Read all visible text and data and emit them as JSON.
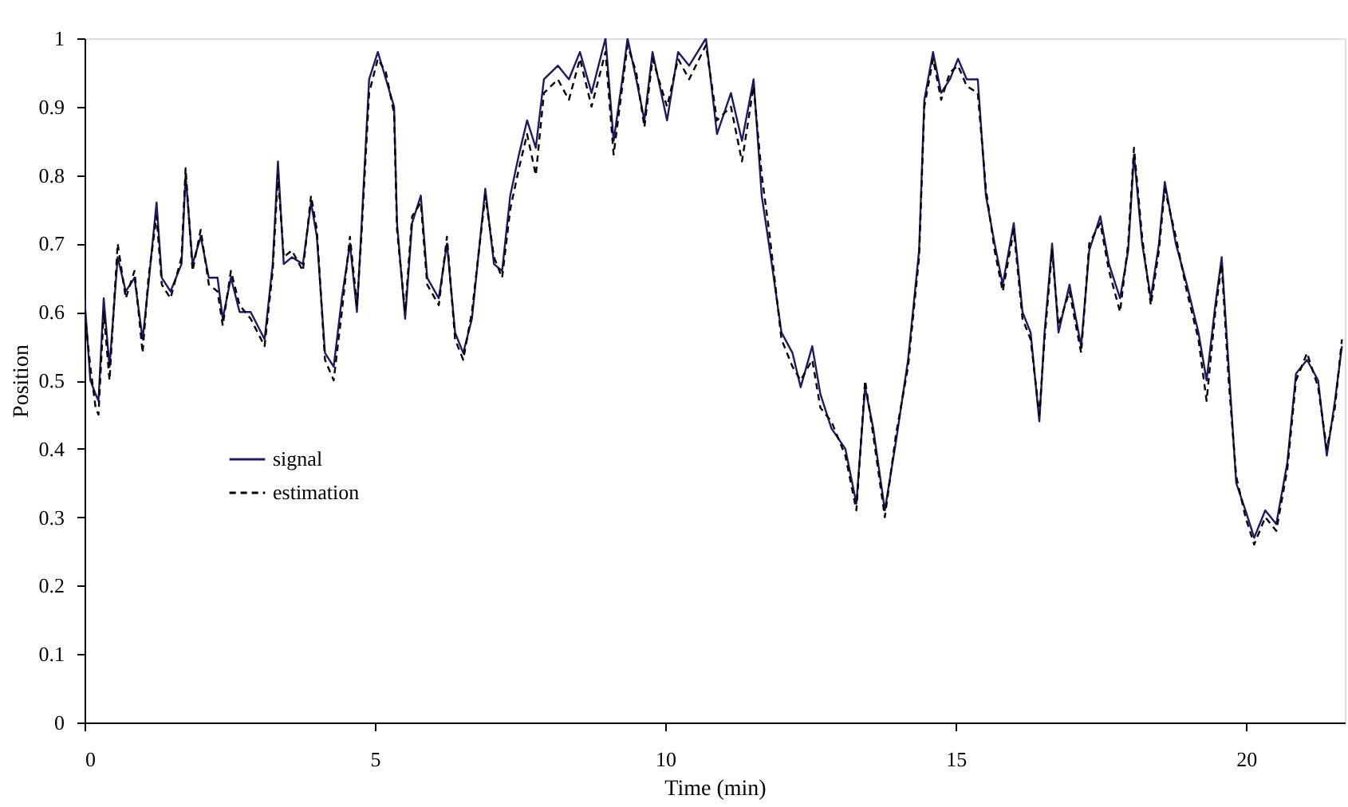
{
  "chart_data": {
    "type": "line",
    "xlabel": "Time (min)",
    "ylabel": "Position",
    "xlim": [
      0,
      21.7
    ],
    "xticks": [
      0,
      5,
      10,
      15,
      20
    ],
    "ylim": [
      0,
      1
    ],
    "yticks": [
      0,
      0.1,
      0.2,
      0.3,
      0.4,
      0.5,
      0.6,
      0.7,
      0.8,
      0.9,
      1
    ],
    "grid": false,
    "legend": "left",
    "marker": "none",
    "x": [
      0,
      0.1,
      0.19,
      0.24,
      0.33,
      0.43,
      0.57,
      0.71,
      0.86,
      1.0,
      1.1,
      1.24,
      1.33,
      1.48,
      1.67,
      1.74,
      1.86,
      2.0,
      2.14,
      2.29,
      2.38,
      2.52,
      2.67,
      2.86,
      3.1,
      3.24,
      3.33,
      3.43,
      3.57,
      3.76,
      3.9,
      4.0,
      4.14,
      4.29,
      4.43,
      4.57,
      4.69,
      4.76,
      4.9,
      5.05,
      5.19,
      5.33,
      5.38,
      5.52,
      5.64,
      5.79,
      5.9,
      6.1,
      6.24,
      6.38,
      6.52,
      6.67,
      6.9,
      7.05,
      7.19,
      7.33,
      7.48,
      7.62,
      7.77,
      7.91,
      8.15,
      8.34,
      8.53,
      8.73,
      8.97,
      9.11,
      9.26,
      9.35,
      9.5,
      9.64,
      9.78,
      10.03,
      10.22,
      10.41,
      10.7,
      10.89,
      11.13,
      11.32,
      11.52,
      11.66,
      11.8,
      12.0,
      12.19,
      12.33,
      12.53,
      12.67,
      12.86,
      13.1,
      13.29,
      13.44,
      13.58,
      13.78,
      13.97,
      14.18,
      14.37,
      14.46,
      14.61,
      14.75,
      14.9,
      15.04,
      15.19,
      15.38,
      15.52,
      15.67,
      15.81,
      16.0,
      16.15,
      16.29,
      16.44,
      16.53,
      16.66,
      16.77,
      16.96,
      17.16,
      17.3,
      17.49,
      17.64,
      17.83,
      17.97,
      18.07,
      18.21,
      18.36,
      18.5,
      18.6,
      18.79,
      18.98,
      19.18,
      19.32,
      19.47,
      19.58,
      19.7,
      19.83,
      19.99,
      20.14,
      20.33,
      20.52,
      20.71,
      20.86,
      21.05,
      21.24,
      21.39,
      21.53,
      21.65
    ],
    "series": [
      {
        "name": "signal",
        "color": "#1c1c66",
        "line_style": "solid",
        "values": [
          0.62,
          0.5,
          0.48,
          0.47,
          0.62,
          0.52,
          0.68,
          0.63,
          0.65,
          0.56,
          0.64,
          0.76,
          0.65,
          0.63,
          0.67,
          0.8,
          0.67,
          0.71,
          0.65,
          0.65,
          0.59,
          0.65,
          0.6,
          0.6,
          0.56,
          0.67,
          0.82,
          0.67,
          0.68,
          0.67,
          0.76,
          0.71,
          0.54,
          0.52,
          0.62,
          0.7,
          0.6,
          0.71,
          0.94,
          0.98,
          0.94,
          0.9,
          0.73,
          0.59,
          0.73,
          0.77,
          0.65,
          0.62,
          0.7,
          0.57,
          0.54,
          0.59,
          0.78,
          0.67,
          0.66,
          0.77,
          0.83,
          0.88,
          0.84,
          0.94,
          0.96,
          0.94,
          0.98,
          0.92,
          1.0,
          0.85,
          0.94,
          1.0,
          0.94,
          0.88,
          0.98,
          0.88,
          0.98,
          0.96,
          1.0,
          0.86,
          0.92,
          0.85,
          0.94,
          0.77,
          0.69,
          0.57,
          0.54,
          0.49,
          0.55,
          0.48,
          0.43,
          0.4,
          0.32,
          0.49,
          0.43,
          0.31,
          0.41,
          0.53,
          0.69,
          0.91,
          0.98,
          0.92,
          0.94,
          0.97,
          0.94,
          0.94,
          0.77,
          0.7,
          0.64,
          0.73,
          0.6,
          0.57,
          0.44,
          0.57,
          0.7,
          0.57,
          0.64,
          0.55,
          0.69,
          0.74,
          0.67,
          0.62,
          0.69,
          0.83,
          0.7,
          0.62,
          0.7,
          0.79,
          0.7,
          0.64,
          0.57,
          0.5,
          0.61,
          0.68,
          0.52,
          0.35,
          0.31,
          0.27,
          0.31,
          0.29,
          0.38,
          0.51,
          0.53,
          0.5,
          0.39,
          0.47,
          0.55
        ]
      },
      {
        "name": "estimation",
        "color": "#000000",
        "line_style": "dashed",
        "values": [
          0.6,
          0.52,
          0.46,
          0.45,
          0.6,
          0.5,
          0.7,
          0.62,
          0.66,
          0.54,
          0.65,
          0.74,
          0.64,
          0.62,
          0.68,
          0.81,
          0.66,
          0.72,
          0.64,
          0.63,
          0.58,
          0.66,
          0.61,
          0.59,
          0.55,
          0.66,
          0.8,
          0.68,
          0.69,
          0.66,
          0.77,
          0.72,
          0.53,
          0.5,
          0.6,
          0.71,
          0.61,
          0.7,
          0.92,
          0.97,
          0.95,
          0.89,
          0.72,
          0.6,
          0.74,
          0.76,
          0.64,
          0.61,
          0.71,
          0.56,
          0.53,
          0.6,
          0.77,
          0.68,
          0.65,
          0.75,
          0.81,
          0.86,
          0.8,
          0.92,
          0.94,
          0.91,
          0.97,
          0.9,
          0.98,
          0.83,
          0.93,
          0.99,
          0.95,
          0.87,
          0.97,
          0.9,
          0.97,
          0.94,
          0.99,
          0.88,
          0.9,
          0.82,
          0.93,
          0.8,
          0.71,
          0.56,
          0.52,
          0.5,
          0.53,
          0.46,
          0.44,
          0.39,
          0.31,
          0.5,
          0.42,
          0.3,
          0.42,
          0.52,
          0.68,
          0.9,
          0.97,
          0.91,
          0.95,
          0.96,
          0.93,
          0.92,
          0.78,
          0.69,
          0.63,
          0.72,
          0.59,
          0.56,
          0.45,
          0.56,
          0.69,
          0.58,
          0.63,
          0.54,
          0.7,
          0.73,
          0.66,
          0.6,
          0.7,
          0.84,
          0.71,
          0.61,
          0.69,
          0.78,
          0.71,
          0.63,
          0.56,
          0.47,
          0.6,
          0.67,
          0.5,
          0.36,
          0.3,
          0.26,
          0.3,
          0.28,
          0.37,
          0.5,
          0.54,
          0.49,
          0.4,
          0.46,
          0.56
        ]
      }
    ]
  }
}
